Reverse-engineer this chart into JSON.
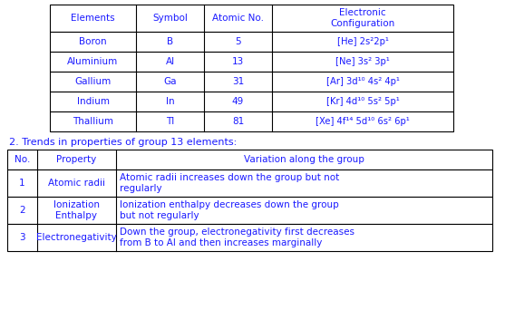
{
  "table1_headers": [
    "Elements",
    "Symbol",
    "Atomic No.",
    "Electronic\nConfiguration"
  ],
  "table1_rows": [
    [
      "Boron",
      "B",
      "5",
      "[He] 2s²2p¹"
    ],
    [
      "Aluminium",
      "Al",
      "13",
      "[Ne] 3s² 3p¹"
    ],
    [
      "Gallium",
      "Ga",
      "31",
      "[Ar] 3d¹⁰ 4s² 4p¹"
    ],
    [
      "Indium",
      "In",
      "49",
      "[Kr] 4d¹⁰ 5s² 5p¹"
    ],
    [
      "Thallium",
      "Tl",
      "81",
      "[Xe] 4f¹⁴ 5d¹⁰ 6s² 6p¹"
    ]
  ],
  "table2_label": "2. Trends in properties of group 13 elements:",
  "table2_headers": [
    "No.",
    "Property",
    "Variation along the group"
  ],
  "table2_rows": [
    [
      "1",
      "Atomic radii",
      "Atomic radii increases down the group but not\nregularly"
    ],
    [
      "2",
      "Ionization\nEnthalpy",
      "Ionization enthalpy decreases down the group\nbut not regularly"
    ],
    [
      "3",
      "Electronegativity",
      "Down the group, electronegativity first decreases\nfrom B to Al and then increases marginally"
    ]
  ],
  "bg_color": "#ffffff",
  "border_color": "#000000",
  "text_color": "#1a1aff",
  "font_size": 7.5
}
